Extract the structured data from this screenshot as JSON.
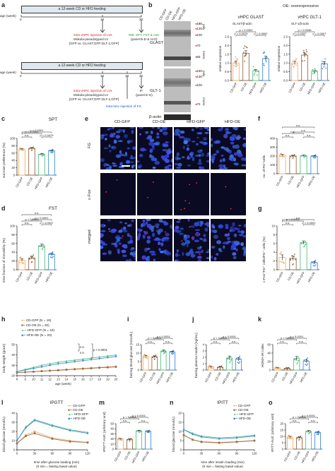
{
  "panels": {
    "a": {
      "letter": "a",
      "timeline1": {
        "bar_text": "a 12-week CD or HFD feeding",
        "age_label": "age (week)",
        "ticks": [
          "0",
          "16",
          "20"
        ],
        "injection_red": "intra-vHPC injection of LVs",
        "injection_text": "Mokola-pseudotyped LV",
        "injection_groups": "[GFP vs. GLAST;GFP;GLT-1;GFP]",
        "assay_green": "WB, SPT, FST & met.",
        "assay_panel": "(panel B-D & H-O)"
      },
      "timeline2": {
        "bar_text": "a 12-week CD or HFD feeding",
        "age_label": "age (week)",
        "ticks": [
          "0",
          "16",
          "19",
          "20"
        ],
        "injection_red": "intra-vHPC injection of LVs",
        "injection_text": "Mokola-pseudotyped LV",
        "injection_groups": "[GFP vs. GLAST;GFP;GLT-1;GFP]",
        "if_label": "IF",
        "if_panel": "(panel E-G)",
        "fg_text": "intra-NAc injection of FG"
      }
    },
    "b": {
      "letter": "b",
      "lanes": [
        "CD-GFP",
        "CD-OE",
        "HFD-GFP",
        "HFD-OE"
      ],
      "oe_note": "OE: overexpression",
      "markers_glast": [
        "180",
        "130",
        "100",
        "70",
        "55"
      ],
      "markers_glt": [
        "180",
        "130",
        "100",
        "70"
      ],
      "rows": [
        "GLAST",
        "GLT-1",
        "β-actin"
      ],
      "side_tags": [
        "poly",
        "mono",
        "poly",
        "mono"
      ]
    },
    "c": {
      "letter": "c",
      "title": "SPT",
      "ylabel": "sucrose preference (%)"
    },
    "d": {
      "letter": "d",
      "title": "FST",
      "ylabel": "time fraction of immobility (%)"
    },
    "e": {
      "letter": "e",
      "cols": [
        "CD-GFP",
        "CD-OE",
        "HFD-GFP",
        "HFD-OE"
      ],
      "rows": [
        "FG",
        "c-Fos",
        "merged"
      ]
    },
    "f": {
      "letter": "f",
      "ylabel": "no. of FG⁺cells"
    },
    "g": {
      "letter": "g",
      "ylabel": "c-Fos⁺FG⁺ cells/FG⁺ cells (%)"
    },
    "h": {
      "letter": "h",
      "ylabel": "body weight (gram)",
      "xlabel": "age (week)",
      "legend": [
        "CD-GFP (N = 19)",
        "CD-OE (N = 20)",
        "HFD-GFP (N = 18)",
        "HFD-OE (N = 20)"
      ]
    },
    "i": {
      "letter": "i",
      "ylabel": "fasting blood glucose (mmol/L)"
    },
    "j": {
      "letter": "j",
      "ylabel": "fasting plasma insulin (ng/mL)"
    },
    "k": {
      "letter": "k",
      "ylabel": "HOMA-IR index"
    },
    "l": {
      "letter": "l",
      "title": "IPGTT",
      "ylabel": "blood glucose (mmol/L)",
      "xlabel": "time after glucose loading (min)",
      "xnote": "(0 min = fasting basal value)"
    },
    "m": {
      "letter": "m",
      "ylabel": "IPGTT-AUC (arbitrary unit)"
    },
    "n": {
      "letter": "n",
      "title": "IPITT",
      "ylabel": "blood glucose (mmol/L)",
      "xlabel": "time after insulin loading (min)",
      "xnote": "(0 min = fasting basal value)"
    },
    "o": {
      "letter": "o",
      "ylabel": "IPITT-AUC (arbitrary unit)"
    }
  },
  "groups": [
    "CD-GFP",
    "CD-OE",
    "HFD-GFP",
    "HFD-OE"
  ],
  "colors": {
    "CD-GFP": "#f0b070",
    "CD-OE": "#9a6a45",
    "HFD-GFP": "#5cbf86",
    "HFD-OE": "#3f8fd6",
    "panel_bg": "#dfe8ee",
    "red_text": "#d32020",
    "green_text": "#2a9a3a",
    "blue_text": "#2050c0"
  },
  "chart_data": [
    {
      "id": "b-glast",
      "type": "bar",
      "title": "vHPC GLAST",
      "ylabel": "relative expression",
      "subtitle": "GLAST/β-actin",
      "categories": [
        "CD-GFP",
        "CD-OE",
        "HFD-GFP",
        "HFD-OE"
      ],
      "values": [
        1.0,
        1.55,
        0.55,
        1.25
      ],
      "errors": [
        0.12,
        0.15,
        0.08,
        0.14
      ],
      "ylim": [
        0,
        2.5
      ],
      "yticks": [
        "0.0",
        "0.5",
        "1.0",
        "1.5",
        "2.0",
        "2.5"
      ],
      "sig": [
        {
          "a": 0,
          "b": 1,
          "text": "p = 0.0076"
        },
        {
          "a": 0,
          "b": 2,
          "text": "p = 0.0302"
        },
        {
          "a": 2,
          "b": 3,
          "text": "p = 0.0002"
        }
      ]
    },
    {
      "id": "b-glt1",
      "type": "bar",
      "title": "vHPC GLT-1",
      "ylabel": "relative expression",
      "subtitle": "GLT-1/β-actin",
      "categories": [
        "CD-GFP",
        "CD-OE",
        "HFD-GFP",
        "HFD-OE"
      ],
      "values": [
        1.0,
        1.45,
        0.5,
        0.95
      ],
      "errors": [
        0.1,
        0.12,
        0.07,
        0.12
      ],
      "ylim": [
        0,
        2.5
      ],
      "yticks": [
        "0.0",
        "0.5",
        "1.0",
        "1.5",
        "2.0",
        "2.5"
      ],
      "sig": [
        {
          "a": 0,
          "b": 1,
          "text": "p = 0.0337"
        },
        {
          "a": 0,
          "b": 2,
          "text": "p = 0.0036"
        },
        {
          "a": 2,
          "b": 3,
          "text": "p = 0.0007"
        }
      ]
    },
    {
      "id": "c",
      "type": "bar",
      "categories": [
        "CD-GFP",
        "CD-OE",
        "HFD-GFP",
        "HFD-OE"
      ],
      "values": [
        71,
        73,
        57,
        66
      ],
      "errors": [
        1.5,
        1.8,
        2.0,
        2.0
      ],
      "ylim": [
        0,
        100
      ],
      "yticks": [
        "0",
        "20",
        "40",
        "60",
        "80",
        "100"
      ],
      "sig": [
        {
          "a": 0,
          "b": 1,
          "text": "n.s."
        },
        {
          "a": 0,
          "b": 2,
          "text": "p < 0.0001"
        },
        {
          "a": 2,
          "b": 3,
          "text": "p = 0.0479"
        },
        {
          "a": 0,
          "b": 3,
          "text": "p < 0.0001",
          "level": 2
        }
      ]
    },
    {
      "id": "d",
      "type": "bar",
      "categories": [
        "CD-GFP",
        "CD-OE",
        "HFD-GFP",
        "HFD-OE"
      ],
      "values": [
        22,
        27,
        55,
        35
      ],
      "errors": [
        3.5,
        3.5,
        3.5,
        3.0
      ],
      "ylim": [
        0,
        100
      ],
      "yticks": [
        "0",
        "20",
        "40",
        "60",
        "80",
        "100"
      ],
      "sig": [
        {
          "a": 0,
          "b": 1,
          "text": "n.s."
        },
        {
          "a": 0,
          "b": 2,
          "text": "p < 0.0001"
        },
        {
          "a": 2,
          "b": 3,
          "text": "p = 0.0047"
        },
        {
          "a": 1,
          "b": 3,
          "text": "p < 0.0001",
          "level": 2
        },
        {
          "a": 0,
          "b": 3,
          "text": "n.s.",
          "level": 3
        }
      ]
    },
    {
      "id": "f",
      "type": "bar",
      "categories": [
        "CD-GFP",
        "CD-OE",
        "HFD-GFP",
        "HFD-OE"
      ],
      "values": [
        210,
        200,
        205,
        198
      ],
      "errors": [
        8,
        8,
        7,
        8
      ],
      "ylim": [
        0,
        400
      ],
      "yticks": [
        "0",
        "100",
        "200",
        "300",
        "400"
      ],
      "sig": [
        {
          "a": 0,
          "b": 1,
          "text": "n.s."
        },
        {
          "a": 0,
          "b": 2,
          "text": "n.s."
        },
        {
          "a": 2,
          "b": 3,
          "text": "n.s."
        },
        {
          "a": 1,
          "b": 3,
          "text": "n.s.",
          "level": 2
        },
        {
          "a": 0,
          "b": 3,
          "text": "n.s.",
          "level": 3
        }
      ]
    },
    {
      "id": "g",
      "type": "bar",
      "categories": [
        "CD-GFP",
        "CD-OE",
        "HFD-GFP",
        "HFD-OE"
      ],
      "values": [
        2.8,
        2.6,
        6.2,
        1.6
      ],
      "errors": [
        0.6,
        0.5,
        0.4,
        0.3
      ],
      "ylim": [
        0,
        10
      ],
      "yticks": [
        "0",
        "2",
        "4",
        "6",
        "8",
        "10"
      ],
      "sig": [
        {
          "a": 0,
          "b": 1,
          "text": "n.s."
        },
        {
          "a": 0,
          "b": 2,
          "text": "p < 0.0001"
        },
        {
          "a": 2,
          "b": 3,
          "text": "p < 0.0001"
        },
        {
          "a": 0,
          "b": 3,
          "text": "n.s.",
          "level": 2
        }
      ]
    },
    {
      "id": "h",
      "type": "line",
      "x": [
        8,
        9,
        10,
        11,
        12,
        13,
        14,
        15,
        16,
        17,
        18,
        19,
        20
      ],
      "xlim": [
        8,
        20
      ],
      "ylim": [
        20,
        50
      ],
      "yticks": [
        "20",
        "30",
        "40",
        "50"
      ],
      "series": [
        {
          "name": "CD-GFP (N = 19)",
          "values": [
            23,
            23.5,
            24,
            24.5,
            25,
            25.5,
            26,
            26.5,
            27,
            27.5,
            28,
            28.5,
            29
          ]
        },
        {
          "name": "CD-OE (N = 20)",
          "values": [
            23,
            23.4,
            23.8,
            24.3,
            24.8,
            25.2,
            25.7,
            26.2,
            26.7,
            27.1,
            27.6,
            28,
            28.5
          ]
        },
        {
          "name": "HFD-GFP (N = 18)",
          "values": [
            24,
            26,
            28,
            30,
            31.5,
            33,
            34,
            35,
            36,
            37,
            38,
            39,
            40
          ]
        },
        {
          "name": "HFD-OE (N = 20)",
          "values": [
            24,
            25.5,
            27,
            28.5,
            30,
            31.5,
            32.5,
            33.5,
            34.5,
            35.5,
            36.5,
            37.5,
            38.5
          ]
        }
      ],
      "sig_labels": [
        "n.s.",
        "n.s.",
        "p < 0.0001"
      ]
    },
    {
      "id": "i",
      "type": "bar",
      "categories": [
        "CD-GFP",
        "CD-OE",
        "HFD-GFP",
        "HFD-OE"
      ],
      "values": [
        8.2,
        7.8,
        11.2,
        10.6
      ],
      "errors": [
        0.5,
        0.5,
        0.6,
        0.5
      ],
      "ylim": [
        0,
        15
      ],
      "yticks": [
        "0",
        "5",
        "10",
        "15"
      ],
      "sig": [
        {
          "a": 0,
          "b": 1,
          "text": "n.s."
        },
        {
          "a": 0,
          "b": 2,
          "text": "p < 0.0001"
        },
        {
          "a": 1,
          "b": 3,
          "text": "p < 0.0001",
          "level": 2
        },
        {
          "a": 2,
          "b": 3,
          "text": "n.s."
        }
      ]
    },
    {
      "id": "j",
      "type": "bar",
      "categories": [
        "CD-GFP",
        "CD-OE",
        "HFD-GFP",
        "HFD-OE"
      ],
      "values": [
        0.5,
        0.45,
        1.9,
        1.7
      ],
      "errors": [
        0.1,
        0.1,
        0.3,
        0.25
      ],
      "ylim": [
        0,
        4
      ],
      "yticks": [
        "0",
        "1",
        "2",
        "3",
        "4"
      ],
      "sig": [
        {
          "a": 0,
          "b": 1,
          "text": "n.s."
        },
        {
          "a": 0,
          "b": 2,
          "text": "p < 0.0001"
        },
        {
          "a": 1,
          "b": 3,
          "text": "p < 0.0001",
          "level": 2
        },
        {
          "a": 2,
          "b": 3,
          "text": "n.s."
        }
      ]
    },
    {
      "id": "k",
      "type": "bar",
      "categories": [
        "CD-GFP",
        "CD-OE",
        "HFD-GFP",
        "HFD-OE"
      ],
      "values": [
        5,
        4,
        27,
        21
      ],
      "errors": [
        1,
        1,
        5,
        4
      ],
      "ylim": [
        0,
        60
      ],
      "yticks": [
        "0",
        "20",
        "40",
        "60"
      ],
      "sig": [
        {
          "a": 0,
          "b": 1,
          "text": "n.s."
        },
        {
          "a": 0,
          "b": 2,
          "text": "p < 0.0001"
        },
        {
          "a": 1,
          "b": 3,
          "text": "p < 0.0001",
          "level": 2
        },
        {
          "a": 2,
          "b": 3,
          "text": "n.s."
        }
      ]
    },
    {
      "id": "l",
      "type": "line",
      "x": [
        0,
        15,
        30,
        60,
        90,
        120
      ],
      "xlim": [
        0,
        120
      ],
      "ylim": [
        0,
        40
      ],
      "xticks": [
        "0",
        "30",
        "60",
        "90",
        "120"
      ],
      "yticks": [
        "0",
        "10",
        "20",
        "30",
        "40"
      ],
      "series": [
        {
          "name": "CD-GFP",
          "values": [
            7,
            16,
            20,
            13,
            10,
            8
          ]
        },
        {
          "name": "CD-OE",
          "values": [
            7,
            15,
            18,
            12,
            9,
            8
          ]
        },
        {
          "name": "HFD-GFP",
          "values": [
            10,
            25,
            33,
            27,
            22,
            19
          ]
        },
        {
          "name": "HFD-OE",
          "values": [
            10,
            24,
            32,
            26,
            21,
            18
          ]
        }
      ]
    },
    {
      "id": "m",
      "type": "bar",
      "categories": [
        "CD-GFP",
        "CD-OE",
        "HFD-GFP",
        "HFD-OE"
      ],
      "values": [
        20,
        19,
        36,
        35
      ],
      "errors": [
        1,
        1,
        1.2,
        1
      ],
      "ylim": [
        0,
        50
      ],
      "yticks": [
        "0",
        "10",
        "20",
        "30",
        "40",
        "50"
      ],
      "sig": [
        {
          "a": 0,
          "b": 1,
          "text": "n.s."
        },
        {
          "a": 0,
          "b": 2,
          "text": "p < 0.0001"
        },
        {
          "a": 1,
          "b": 3,
          "text": "p < 0.0001",
          "level": 2
        },
        {
          "a": 2,
          "b": 3,
          "text": "n.s."
        }
      ]
    },
    {
      "id": "n",
      "type": "line",
      "x": [
        0,
        15,
        30,
        60,
        90,
        120
      ],
      "xlim": [
        0,
        120
      ],
      "ylim": [
        0,
        20
      ],
      "xticks": [
        "0",
        "30",
        "60",
        "90",
        "120"
      ],
      "yticks": [
        "0",
        "5",
        "10",
        "15",
        "20"
      ],
      "series": [
        {
          "name": "CD-GFP",
          "values": [
            8,
            5.5,
            4.5,
            4,
            4.5,
            5
          ]
        },
        {
          "name": "CD-OE",
          "values": [
            8,
            5.5,
            4.3,
            3.8,
            4.3,
            5
          ]
        },
        {
          "name": "HFD-GFP",
          "values": [
            11,
            9,
            7.5,
            6.5,
            7,
            8
          ]
        },
        {
          "name": "HFD-OE",
          "values": [
            11,
            8.5,
            7,
            6,
            6.5,
            7.5
          ]
        }
      ]
    },
    {
      "id": "o",
      "type": "bar",
      "categories": [
        "CD-GFP",
        "CD-OE",
        "HFD-GFP",
        "HFD-OE"
      ],
      "values": [
        9.5,
        9,
        14,
        13
      ],
      "errors": [
        0.6,
        0.6,
        0.7,
        0.6
      ],
      "ylim": [
        0,
        20
      ],
      "yticks": [
        "0",
        "5",
        "10",
        "15",
        "20"
      ],
      "sig": [
        {
          "a": 0,
          "b": 1,
          "text": "n.s."
        },
        {
          "a": 0,
          "b": 2,
          "text": "p < 0.0001"
        },
        {
          "a": 1,
          "b": 3,
          "text": "p < 0.0001",
          "level": 2
        },
        {
          "a": 2,
          "b": 3,
          "text": "n.s."
        }
      ]
    }
  ]
}
